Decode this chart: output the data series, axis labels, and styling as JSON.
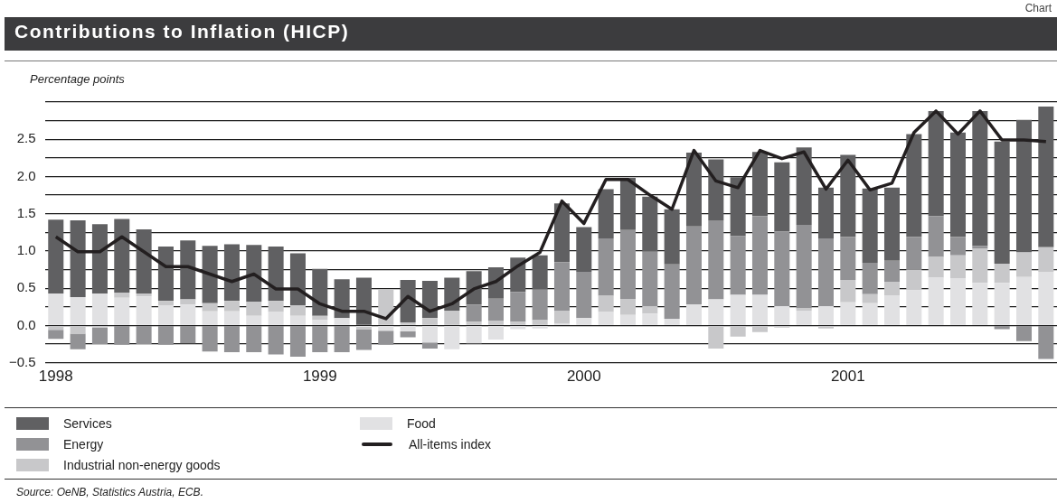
{
  "chart_data": {
    "type": "bar",
    "title": "Contributions to Inflation (HICP)",
    "ylabel": "Percentage points",
    "annotations": [
      "Chart",
      "Source: OeNB, Statistics Austria, ECB."
    ],
    "categories": [
      "1998",
      null,
      null,
      null,
      null,
      null,
      null,
      null,
      null,
      null,
      null,
      null,
      "1999",
      null,
      null,
      null,
      null,
      null,
      null,
      null,
      null,
      null,
      null,
      null,
      "2000",
      null,
      null,
      null,
      null,
      null,
      null,
      null,
      null,
      null,
      null,
      null,
      "2001",
      null,
      null,
      null,
      null,
      null,
      null,
      null,
      null,
      null
    ],
    "stacked": true,
    "grid": "y",
    "legend": "bottom",
    "ylim": [
      -0.5,
      3.0
    ],
    "yticks": [
      {
        "value": -0.5,
        "label": "−0.5"
      },
      {
        "value": -0.25,
        "label": null
      },
      {
        "value": 0,
        "label": "0.0"
      },
      {
        "value": 0.25,
        "label": null
      },
      0.5,
      {
        "value": 0.75,
        "label": null
      },
      {
        "value": 1,
        "label": "1.0"
      },
      {
        "value": 1.25,
        "label": null
      },
      1.5,
      {
        "value": 1.75,
        "label": null
      },
      {
        "value": 2,
        "label": "2.0"
      },
      {
        "value": 2.25,
        "label": null
      },
      2.5,
      {
        "value": 2.75,
        "label": null
      },
      {
        "value": 3,
        "label": null
      }
    ],
    "series": [
      {
        "name": "Food",
        "color": "#e1e1e3",
        "values": [
          0.43,
          0.38,
          0.43,
          0.37,
          0.39,
          0.27,
          0.28,
          0.19,
          0.19,
          0.13,
          0.18,
          0.13,
          0.07,
          0.1,
          -0.02,
          -0.07,
          -0.08,
          -0.23,
          -0.32,
          -0.24,
          -0.19,
          -0.05,
          -0.04,
          0.03,
          0.1,
          0.18,
          0.14,
          0.16,
          0.09,
          0.28,
          0.35,
          0.41,
          0.41,
          0.26,
          0.2,
          0.26,
          0.31,
          0.3,
          0.4,
          0.47,
          0.64,
          0.63,
          0.57,
          0.57,
          0.65,
          0.72
        ]
      },
      {
        "name": "Industrial non-energy goods",
        "color": "#c8c8ca",
        "values": [
          -0.06,
          -0.11,
          -0.03,
          0.07,
          0.04,
          0.06,
          0.07,
          0.11,
          0.14,
          0.19,
          0.15,
          0.14,
          0.06,
          0,
          -0.03,
          0.48,
          0.04,
          0.1,
          0.2,
          0.05,
          0.06,
          0.05,
          0.07,
          0.17,
          0,
          0.22,
          0.21,
          0.1,
          null,
          null,
          -0.31,
          -0.15,
          -0.09,
          -0.03,
          0.03,
          -0.04,
          0.3,
          0.12,
          0.18,
          0.28,
          0.28,
          0.31,
          0.46,
          0.26,
          0.33,
          0.33
        ]
      },
      {
        "name": "Energy",
        "color": "#929295",
        "values": [
          -0.12,
          -0.21,
          -0.22,
          -0.26,
          -0.25,
          -0.26,
          -0.24,
          -0.35,
          -0.36,
          -0.36,
          -0.39,
          -0.42,
          -0.36,
          -0.36,
          -0.28,
          -0.19,
          -0.08,
          -0.08,
          0,
          0.23,
          0.3,
          0.4,
          0.41,
          0.65,
          0.62,
          0.77,
          0.93,
          0.73,
          0.73,
          1.05,
          1.06,
          0.79,
          1.06,
          1.0,
          1.12,
          0.91,
          0.58,
          0.42,
          0.29,
          0.44,
          0.55,
          0.25,
          0.04,
          -0.05,
          -0.21,
          -0.45
        ]
      },
      {
        "name": "Services",
        "color": "#606062",
        "values": [
          0.99,
          1.03,
          0.93,
          0.99,
          0.86,
          0.73,
          0.79,
          0.77,
          0.76,
          0.76,
          0.73,
          0.7,
          0.63,
          0.52,
          0.64,
          0,
          0.57,
          0.5,
          0.44,
          0.45,
          0.42,
          0.46,
          0.46,
          0.79,
          0.6,
          0.66,
          0.7,
          0.74,
          0.74,
          0.99,
          0.82,
          0.79,
          0.86,
          0.93,
          1.04,
          0.68,
          1.1,
          1.0,
          0.98,
          1.38,
          1.41,
          1.4,
          1.81,
          1.64,
          1.78,
          1.89
        ]
      },
      {
        "name": "All-items index",
        "type": "line",
        "color": "#231f20",
        "values": [
          1.19,
          0.99,
          0.99,
          1.19,
          0.99,
          0.79,
          0.79,
          0.69,
          0.59,
          0.69,
          0.49,
          0.49,
          0.29,
          0.19,
          0.19,
          0.09,
          0.39,
          0.19,
          0.29,
          0.49,
          0.59,
          0.8,
          0.98,
          1.67,
          1.37,
          1.96,
          1.96,
          1.75,
          1.56,
          2.35,
          1.94,
          1.85,
          2.35,
          2.24,
          2.33,
          1.83,
          2.22,
          1.82,
          1.91,
          2.59,
          2.88,
          2.57,
          2.88,
          2.49,
          2.49,
          2.47
        ]
      }
    ]
  }
}
